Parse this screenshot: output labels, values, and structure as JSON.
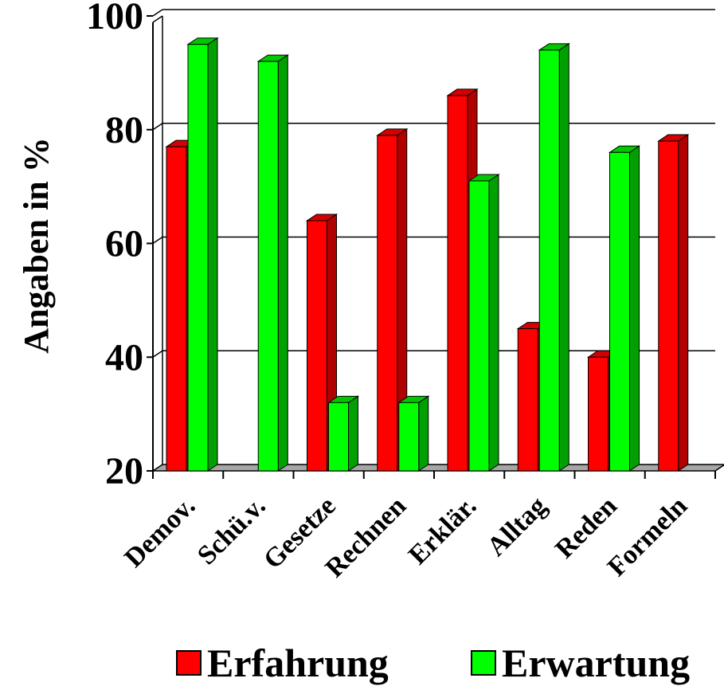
{
  "chart_data": {
    "type": "bar",
    "ylabel": "Angaben in %",
    "ylim": [
      20,
      100
    ],
    "yticks": [
      20,
      40,
      60,
      80,
      100
    ],
    "grid": true,
    "legend_position": "bottom",
    "categories": [
      "Demov.",
      "Schü.v.",
      "Gesetze",
      "Rechnen",
      "Erklär.",
      "Alltag",
      "Reden",
      "Formeln"
    ],
    "series": [
      {
        "name": "Erfahrung",
        "color": "#ff0000",
        "values": [
          77,
          null,
          64,
          79,
          86,
          45,
          40,
          78
        ]
      },
      {
        "name": "Erwartung",
        "color": "#00ff00",
        "values": [
          95,
          92,
          32,
          32,
          71,
          94,
          76,
          null
        ]
      }
    ]
  }
}
